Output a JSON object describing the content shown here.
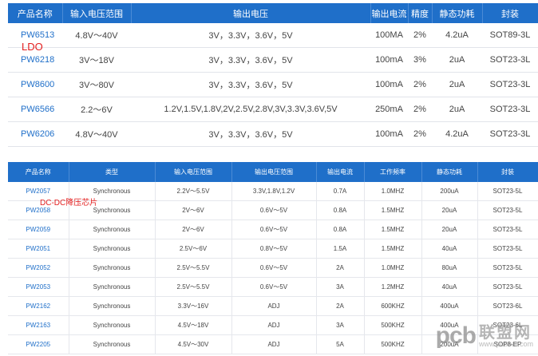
{
  "ldo": {
    "overlay_label": "LDO",
    "headers": [
      "产品名称",
      "输入电压范围",
      "输出电压",
      "输出电流",
      "精度",
      "静态功耗",
      "封装"
    ],
    "rows": [
      [
        "PW6513",
        "4.8V～40V",
        "3V，3.3V，3.6V，5V",
        "100MA",
        "2%",
        "4.2uA",
        "SOT89-3L"
      ],
      [
        "PW6218",
        "3V～18V",
        "3V，3.3V，3.6V，5V",
        "100mA",
        "3%",
        "2uA",
        "SOT23-3L"
      ],
      [
        "PW8600",
        "3V～80V",
        "3V，3.3V，3.6V，5V",
        "100mA",
        "2%",
        "2uA",
        "SOT23-3L"
      ],
      [
        "PW6566",
        "2.2～6V",
        "1.2V,1.5V,1.8V,2V,2.5V,2.8V,3V,3.3V,3.6V,5V",
        "250mA",
        "2%",
        "2uA",
        "SOT23-3L"
      ],
      [
        "PW6206",
        "4.8V～40V",
        "3V，3.3V，3.6V，5V",
        "100mA",
        "2%",
        "4.2uA",
        "SOT23-3L"
      ]
    ]
  },
  "dcdc": {
    "overlay_label": "DC-DC降压芯片",
    "headers": [
      "产品名称",
      "类型",
      "输入电压范围",
      "输出电压范围",
      "输出电流",
      "工作频率",
      "静态功耗",
      "封装"
    ],
    "rows": [
      [
        "PW2057",
        "Synchronous",
        "2.2V～5.5V",
        "3.3V,1.8V,1.2V",
        "0.7A",
        "1.0MHZ",
        "200uA",
        "SOT23-5L"
      ],
      [
        "PW2058",
        "Synchronous",
        "2V～6V",
        "0.6V～5V",
        "0.8A",
        "1.5MHZ",
        "20uA",
        "SOT23-5L"
      ],
      [
        "PW2059",
        "Synchronous",
        "2V～6V",
        "0.6V～5V",
        "0.8A",
        "1.5MHZ",
        "20uA",
        "SOT23-5L"
      ],
      [
        "PW2051",
        "Synchronous",
        "2.5V～6V",
        "0.8V～5V",
        "1.5A",
        "1.5MHZ",
        "40uA",
        "SOT23-5L"
      ],
      [
        "PW2052",
        "Synchronous",
        "2.5V～5.5V",
        "0.6V～5V",
        "2A",
        "1.0MHZ",
        "80uA",
        "SOT23-5L"
      ],
      [
        "PW2053",
        "Synchronous",
        "2.5V～5.5V",
        "0.6V～5V",
        "3A",
        "1.2MHZ",
        "40uA",
        "SOT23-5L"
      ],
      [
        "PW2162",
        "Synchronous",
        "3.3V～16V",
        "ADJ",
        "2A",
        "600KHZ",
        "400uA",
        "SOT23-6L"
      ],
      [
        "PW2163",
        "Synchronous",
        "4.5V～18V",
        "ADJ",
        "3A",
        "500KHZ",
        "400uA",
        "SOT23-6L"
      ],
      [
        "PW2205",
        "Synchronous",
        "4.5V～30V",
        "ADJ",
        "5A",
        "500KHZ",
        "200uA",
        "SOP8-EP"
      ]
    ]
  },
  "watermark": {
    "mark": "pcb",
    "cn": "联盟网",
    "url": "www.pcbbar.com"
  }
}
